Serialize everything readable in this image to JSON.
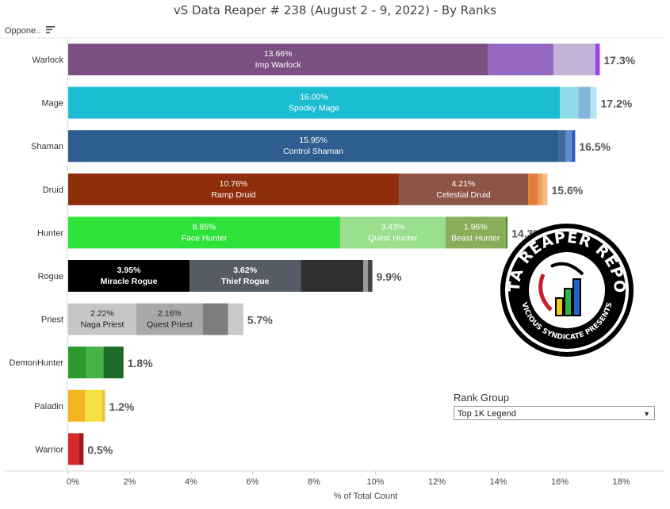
{
  "title": "vS Data Reaper #  238 (August 2 - 9, 2022) - By Ranks",
  "sort_header": {
    "label": "Oppone.."
  },
  "rank_group": {
    "title": "Rank Group",
    "selected": "Top 1K Legend"
  },
  "logo": {
    "text_top": "DATA REAPER REPORT",
    "text_bottom": "VICIOUS SYNDICATE PRESENTS"
  },
  "chart_data": {
    "type": "bar",
    "orientation": "horizontal",
    "stacked": true,
    "xlabel": "% of Total Count",
    "xlim": [
      0,
      18
    ],
    "x_ticks": [
      0,
      2,
      4,
      6,
      8,
      10,
      12,
      14,
      16,
      18
    ],
    "x_tick_labels": [
      "0%",
      "2%",
      "4%",
      "6%",
      "8%",
      "10%",
      "12%",
      "14%",
      "16%",
      "18%"
    ],
    "grid": false,
    "categories": [
      "Warlock",
      "Mage",
      "Shaman",
      "Druid",
      "Hunter",
      "Rogue",
      "Priest",
      "DemonHunter",
      "Paladin",
      "Warrior"
    ],
    "totals": [
      "17.3%",
      "17.2%",
      "16.5%",
      "15.6%",
      "14.3%",
      "9.9%",
      "5.7%",
      "1.8%",
      "1.2%",
      "0.5%"
    ],
    "rows": [
      {
        "class": "Warlock",
        "segments": [
          {
            "value": 13.66,
            "color": "#7b4f82",
            "pct_label": "13.66%",
            "name": "Imp Warlock"
          },
          {
            "value": 2.14,
            "color": "#9467c0"
          },
          {
            "value": 1.36,
            "color": "#c3b3d6"
          },
          {
            "value": 0.14,
            "color": "#9e3ff0"
          }
        ]
      },
      {
        "class": "Mage",
        "segments": [
          {
            "value": 16.0,
            "color": "#1bbdd3",
            "pct_label": "16.00%",
            "name": "Spooky Mage"
          },
          {
            "value": 0.6,
            "color": "#8fdcea"
          },
          {
            "value": 0.4,
            "color": "#85b6d9"
          },
          {
            "value": 0.2,
            "color": "#b3e6f0"
          }
        ]
      },
      {
        "class": "Shaman",
        "segments": [
          {
            "value": 15.95,
            "color": "#2e5e8e",
            "pct_label": "15.95%",
            "name": "Control Shaman"
          },
          {
            "value": 0.25,
            "color": "#3c6b9b"
          },
          {
            "value": 0.2,
            "color": "#5d8fc8"
          },
          {
            "value": 0.1,
            "color": "#2f56c8"
          }
        ]
      },
      {
        "class": "Druid",
        "segments": [
          {
            "value": 10.76,
            "color": "#8e2e0a",
            "pct_label": "10.76%",
            "name": "Ramp Druid"
          },
          {
            "value": 4.21,
            "color": "#8e5547",
            "pct_label": "4.21%",
            "name": "Celestial Druid"
          },
          {
            "value": 0.33,
            "color": "#e27d3c"
          },
          {
            "value": 0.15,
            "color": "#f0a060"
          },
          {
            "value": 0.15,
            "color": "#ffb880"
          }
        ]
      },
      {
        "class": "Hunter",
        "segments": [
          {
            "value": 8.85,
            "color": "#2ee23a",
            "pct_label": "8.85%",
            "name": "Face Hunter"
          },
          {
            "value": 3.43,
            "color": "#9adf8e",
            "pct_label": "3.43%",
            "name": "Quest Hunter"
          },
          {
            "value": 1.96,
            "color": "#8aad5a",
            "pct_label": "1.96%",
            "name": "Beast Hunter"
          },
          {
            "value": 0.06,
            "color": "#4a8a3a"
          }
        ]
      },
      {
        "class": "Rogue",
        "segments": [
          {
            "value": 3.95,
            "color": "#000000",
            "pct_label": "3.95%",
            "name": "Miracle Rogue",
            "bold": true
          },
          {
            "value": 3.62,
            "color": "#555c66",
            "pct_label": "3.62%",
            "name": "Thief Rogue",
            "bold": true
          },
          {
            "value": 2.03,
            "color": "#2f2f2f"
          },
          {
            "value": 0.15,
            "color": "#9a9a9a"
          },
          {
            "value": 0.15,
            "color": "#444444"
          }
        ]
      },
      {
        "class": "Priest",
        "segments": [
          {
            "value": 2.22,
            "color": "#c6c6c6",
            "pct_label": "2.22%",
            "name": "Naga Priest",
            "dark": true
          },
          {
            "value": 2.16,
            "color": "#a9a9a9",
            "pct_label": "2.16%",
            "name": "Quest Priest",
            "dark": true
          },
          {
            "value": 0.82,
            "color": "#7d7d7d"
          },
          {
            "value": 0.5,
            "color": "#c9c9c9"
          }
        ]
      },
      {
        "class": "DemonHunter",
        "segments": [
          {
            "value": 0.6,
            "color": "#2e9a2e"
          },
          {
            "value": 0.55,
            "color": "#46b346"
          },
          {
            "value": 0.65,
            "color": "#1d6b28"
          }
        ]
      },
      {
        "class": "Paladin",
        "segments": [
          {
            "value": 0.55,
            "color": "#f2b521"
          },
          {
            "value": 0.55,
            "color": "#f5e143"
          },
          {
            "value": 0.1,
            "color": "#f0c040"
          }
        ]
      },
      {
        "class": "Warrior",
        "segments": [
          {
            "value": 0.35,
            "color": "#d62b2b"
          },
          {
            "value": 0.15,
            "color": "#a31818"
          }
        ]
      }
    ]
  }
}
